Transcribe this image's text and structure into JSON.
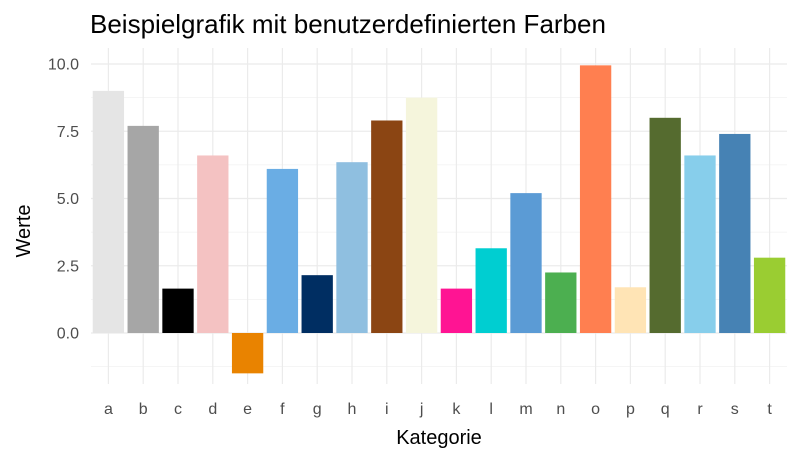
{
  "chart_data": {
    "type": "bar",
    "title": "Beispielgrafik mit benutzerdefinierten Farben",
    "xlabel": "Kategorie",
    "ylabel": "Werte",
    "categories": [
      "a",
      "b",
      "c",
      "d",
      "e",
      "f",
      "g",
      "h",
      "i",
      "j",
      "k",
      "l",
      "m",
      "n",
      "o",
      "p",
      "q",
      "r",
      "s",
      "t"
    ],
    "values": [
      9.0,
      7.7,
      1.65,
      6.6,
      -1.5,
      6.1,
      2.15,
      6.35,
      7.9,
      8.75,
      1.65,
      3.15,
      5.2,
      2.25,
      9.95,
      1.7,
      8.0,
      6.6,
      7.4,
      2.8
    ],
    "colors": [
      "#e5e5e5",
      "#a6a6a6",
      "#000000",
      "#f4c2c2",
      "#e98300",
      "#6aade4",
      "#002e62",
      "#8fbfe0",
      "#8b4513",
      "#f5f5dc",
      "#ff1493",
      "#00ced1",
      "#5b9bd5",
      "#4caf50",
      "#ff7f50",
      "#ffe4b5",
      "#556b2f",
      "#87ceeb",
      "#4682b4",
      "#9acd32"
    ],
    "yticks": [
      0.0,
      2.5,
      5.0,
      7.5,
      10.0
    ],
    "ytick_labels": [
      "0.0",
      "2.5",
      "5.0",
      "7.5",
      "10.0"
    ],
    "ylim": [
      -1.75,
      10.5
    ],
    "grid": true,
    "legend": "none"
  }
}
